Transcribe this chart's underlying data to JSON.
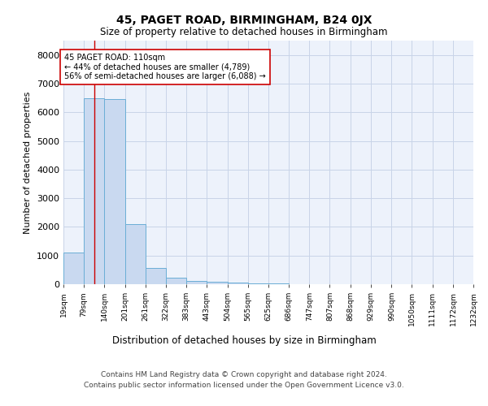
{
  "title1": "45, PAGET ROAD, BIRMINGHAM, B24 0JX",
  "title2": "Size of property relative to detached houses in Birmingham",
  "xlabel": "Distribution of detached houses by size in Birmingham",
  "ylabel": "Number of detached properties",
  "bar_color": "#c9d9f0",
  "bar_edge_color": "#6baed6",
  "grid_color": "#c8d4e8",
  "background_color": "#edf2fb",
  "property_line_x": 110,
  "property_line_color": "#cc0000",
  "annotation_text": "45 PAGET ROAD: 110sqm\n← 44% of detached houses are smaller (4,789)\n56% of semi-detached houses are larger (6,088) →",
  "annotation_box_color": "#ffffff",
  "annotation_box_edge": "#cc0000",
  "bin_edges": [
    19,
    79,
    140,
    201,
    261,
    322,
    383,
    443,
    504,
    565,
    625,
    686,
    747,
    807,
    868,
    929,
    990,
    1050,
    1111,
    1172,
    1232
  ],
  "bar_heights": [
    1100,
    6500,
    6450,
    2100,
    560,
    230,
    110,
    75,
    55,
    20,
    15,
    10,
    8,
    5,
    5,
    4,
    3,
    2,
    1,
    1
  ],
  "ylim": [
    0,
    8500
  ],
  "yticks": [
    0,
    1000,
    2000,
    3000,
    4000,
    5000,
    6000,
    7000,
    8000
  ],
  "footer1": "Contains HM Land Registry data © Crown copyright and database right 2024.",
  "footer2": "Contains public sector information licensed under the Open Government Licence v3.0."
}
